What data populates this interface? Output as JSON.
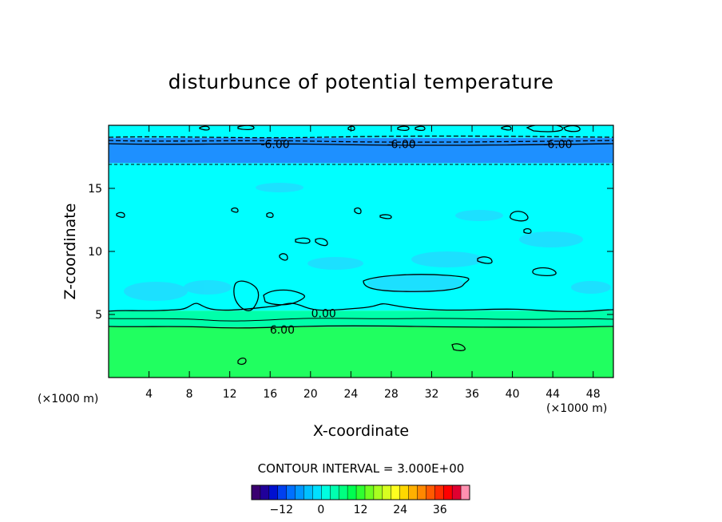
{
  "chart_data": {
    "type": "contour",
    "title": "disturbunce of potential temperature",
    "xlabel": "X-coordinate",
    "ylabel": "Z-coordinate",
    "x_unit": "(×1000 m)",
    "y_unit": "(×1000 m)",
    "xlim": [
      0,
      50
    ],
    "ylim": [
      0,
      20
    ],
    "x_ticks": [
      4,
      8,
      12,
      16,
      20,
      24,
      28,
      32,
      36,
      40,
      44,
      48
    ],
    "y_ticks": [
      5,
      10,
      15
    ],
    "contour_interval_text": "CONTOUR INTERVAL = 3.000E+00",
    "contour_labels": [
      {
        "text": "-6.00",
        "x": 16.5,
        "z": 18.5
      },
      {
        "text": "-6.00",
        "x": 29.0,
        "z": 18.5
      },
      {
        "text": "-6.00",
        "x": 44.5,
        "z": 18.5
      },
      {
        "text": "0.00",
        "x": 21.3,
        "z": 5.1
      },
      {
        "text": "6.00",
        "x": 17.2,
        "z": 3.8
      }
    ],
    "layers": [
      {
        "z_range": [
          19.0,
          20.0
        ],
        "value": 0,
        "color": "#00ffff"
      },
      {
        "z_range": [
          17.0,
          19.0
        ],
        "value": -6,
        "color": "#1e90ff"
      },
      {
        "z_range": [
          5.3,
          17.0
        ],
        "value": 0,
        "color": "#00ffff"
      },
      {
        "z_range": [
          4.0,
          5.3
        ],
        "value": 3,
        "color": "#00ffaa"
      },
      {
        "z_range": [
          0.0,
          4.0
        ],
        "value": 6,
        "color": "#20ff60"
      }
    ],
    "colorbar": {
      "ticks": [
        "−12",
        "0",
        "12",
        "24",
        "36"
      ],
      "range": [
        -21,
        45
      ],
      "colors": [
        "#3a0070",
        "#20009a",
        "#0010d0",
        "#0040f0",
        "#0070ff",
        "#0098ff",
        "#00c0ff",
        "#00e0ff",
        "#00ffe0",
        "#00ffb0",
        "#00ff80",
        "#00ff50",
        "#30ff30",
        "#70ff20",
        "#a8ff20",
        "#d8ff20",
        "#ffff20",
        "#ffd800",
        "#ffb000",
        "#ff8800",
        "#ff5a00",
        "#ff2c00",
        "#ff0000",
        "#e00030",
        "#ff90b0"
      ]
    }
  }
}
